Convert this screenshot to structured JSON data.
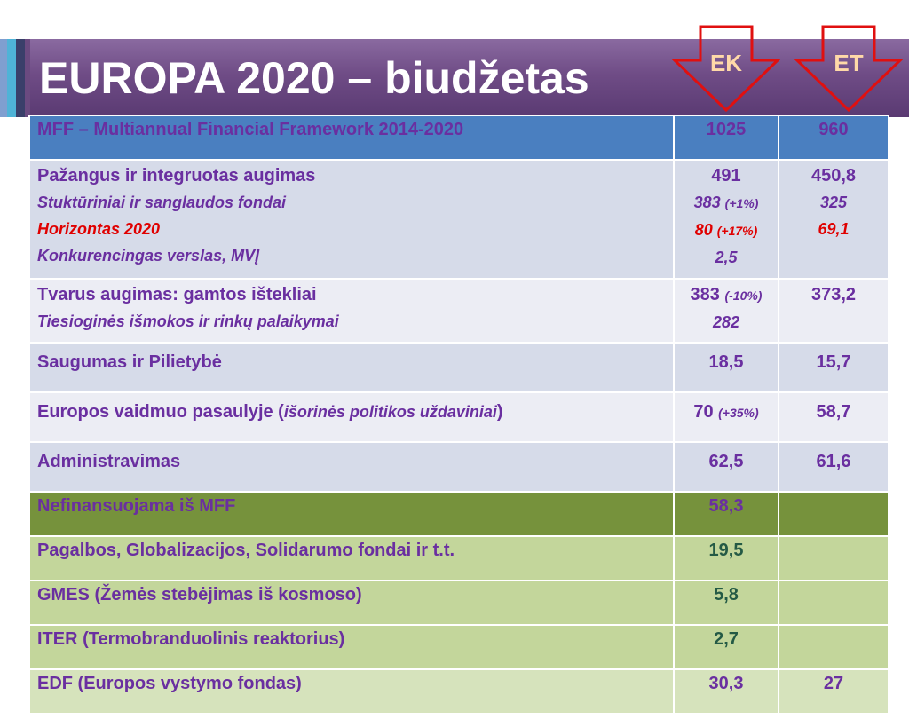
{
  "title": "EUROPA 2020 – biudžetas",
  "arrows": {
    "ek": "EK",
    "et": "ET"
  },
  "colors": {
    "title_bar": "#6f4c86",
    "table_header": "#4a7fc0",
    "row_dark": "#d6dbe9",
    "row_light": "#ecedf4",
    "green_header": "#76923c",
    "green_row": "#c3d69b",
    "text_purple": "#6a2fa0",
    "text_red": "#e00000",
    "text_green": "#245a45",
    "arrow_stroke": "#e01010"
  },
  "table": {
    "header": {
      "label": "MFF – Multiannual Financial Framework 2014-2020",
      "ek": "1025",
      "et": "960"
    },
    "row1": {
      "label": "Pažangus ir integruotas augimas",
      "sub1": "Stuktūriniai ir sanglaudos fondai",
      "sub2": "Horizontas 2020",
      "sub3": "Konkurencingas verslas, MVĮ",
      "ek_main": "491",
      "ek_sub1": "383",
      "ek_sub1_pct": "(+1%)",
      "ek_sub2": "80",
      "ek_sub2_pct": "(+17%)",
      "ek_sub3": "2,5",
      "et_main": "450,8",
      "et_sub1": "325",
      "et_sub2": "69,1"
    },
    "row2": {
      "label": "Tvarus augimas: gamtos ištekliai",
      "sub1": "Tiesioginės išmokos ir rinkų palaikymai",
      "ek_main": "383",
      "ek_main_pct": "(-10%)",
      "ek_sub1": "282",
      "et_main": "373,2"
    },
    "row3": {
      "label": "Saugumas ir Pilietybė",
      "ek": "18,5",
      "et": "15,7"
    },
    "row4": {
      "label_a": "Europos vaidmuo pasaulyje (",
      "label_b": "išorinės politikos uždaviniai",
      "label_c": ")",
      "ek": "70",
      "ek_pct": "(+35%)",
      "et": "58,7"
    },
    "row5": {
      "label": "Administravimas",
      "ek": "62,5",
      "et": "61,6"
    },
    "green_header": {
      "label": "Nefinansuojama iš MFF",
      "ek": "58,3",
      "et": ""
    },
    "green_rows": [
      {
        "label": "Pagalbos, Globalizacijos, Solidarumo fondai ir t.t.",
        "ek": "19,5",
        "et": ""
      },
      {
        "label": "GMES (Žemės stebėjimas iš kosmoso)",
        "ek": "5,8",
        "et": ""
      },
      {
        "label": "ITER (Termobranduolinis reaktorius)",
        "ek": "2,7",
        "et": ""
      },
      {
        "label": "EDF (Europos vystymo fondas)",
        "ek": "30,3",
        "et": "27"
      }
    ]
  }
}
